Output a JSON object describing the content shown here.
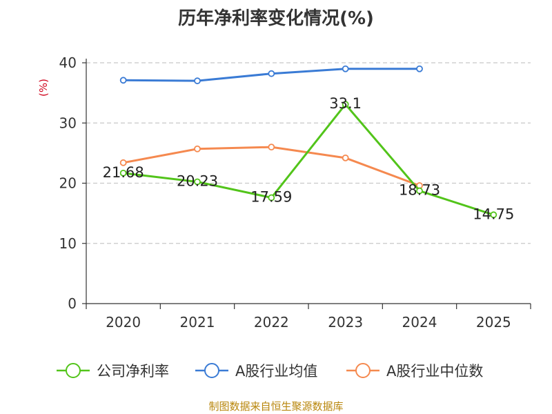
{
  "chart_data": {
    "type": "line",
    "title": "历年净利率变化情况(%)",
    "ylabel": "(%)",
    "xlabel": "",
    "categories": [
      "2020",
      "2021",
      "2022",
      "2023",
      "2024",
      "2025"
    ],
    "ylim": [
      0,
      40
    ],
    "yticks": [
      0,
      10,
      20,
      30,
      40
    ],
    "grid": true,
    "legend_position": "bottom",
    "series": [
      {
        "name": "公司净利率",
        "color": "#52c41a",
        "values": [
          21.68,
          20.23,
          17.59,
          33.1,
          18.73,
          14.75
        ],
        "labels": [
          "21.68",
          "20.23",
          "17.59",
          "33.1",
          "18.73",
          "14.75"
        ]
      },
      {
        "name": "A股行业均值",
        "color": "#3a7bd5",
        "values": [
          37.1,
          37.0,
          38.2,
          39.0,
          39.0,
          null
        ]
      },
      {
        "name": "A股行业中位数",
        "color": "#f5894f",
        "values": [
          23.4,
          25.7,
          26.0,
          24.2,
          19.6,
          null
        ]
      }
    ],
    "source": "制图数据来自恒生聚源数据库"
  }
}
